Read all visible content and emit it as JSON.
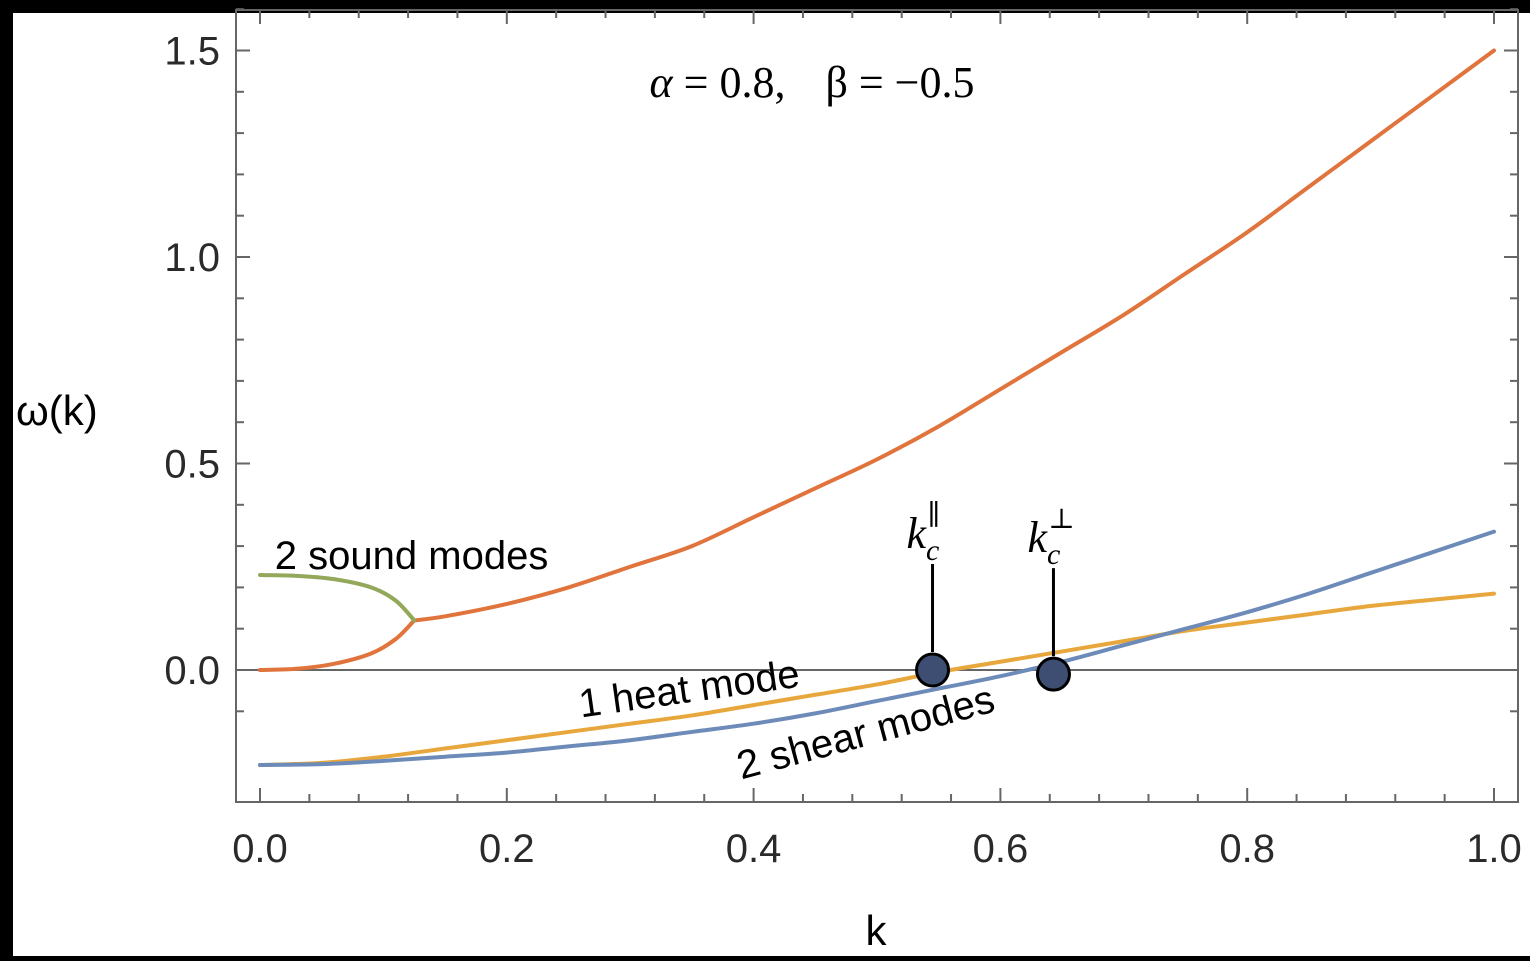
{
  "chart_data": {
    "type": "line",
    "title": "α = 0.8,    β = −0.5",
    "title_parts": {
      "alpha_symbol": "α",
      "alpha_eq": " = 0.8,",
      "beta_symbol": "β",
      "beta_eq": " = −0.5"
    },
    "xlabel": "k",
    "ylabel": "ω(k)",
    "xlim": [
      0.0,
      1.0
    ],
    "ylim": [
      -0.3,
      1.6
    ],
    "x_ticks": [
      "0.0",
      "0.2",
      "0.4",
      "0.6",
      "0.8",
      "1.0"
    ],
    "x_tick_values": [
      0.0,
      0.2,
      0.4,
      0.6,
      0.8,
      1.0
    ],
    "y_ticks": [
      "0.0",
      "0.5",
      "1.0",
      "1.5"
    ],
    "y_tick_values": [
      0.0,
      0.5,
      1.0,
      1.5
    ],
    "grid": false,
    "series": [
      {
        "color": "#e0743c",
        "x": [
          0.125,
          0.15,
          0.2,
          0.25,
          0.3,
          0.35,
          0.4,
          0.45,
          0.5,
          0.55,
          0.6,
          0.65,
          0.7,
          0.75,
          0.8,
          0.85,
          0.9,
          0.95,
          1.0
        ],
        "y": [
          0.12,
          0.13,
          0.16,
          0.2,
          0.25,
          0.3,
          0.37,
          0.44,
          0.51,
          0.59,
          0.68,
          0.77,
          0.86,
          0.96,
          1.06,
          1.17,
          1.28,
          1.39,
          1.5
        ]
      },
      {
        "color": "#e0743c",
        "x": [
          0.0,
          0.03,
          0.06,
          0.09,
          0.11,
          0.125
        ],
        "y": [
          0.0,
          0.003,
          0.015,
          0.04,
          0.075,
          0.12
        ]
      },
      {
        "color": "#93a85a",
        "x": [
          0.0,
          0.03,
          0.06,
          0.09,
          0.11,
          0.125
        ],
        "y": [
          0.23,
          0.228,
          0.22,
          0.2,
          0.168,
          0.12
        ]
      },
      {
        "color": "#e8a73c",
        "x": [
          0.0,
          0.05,
          0.1,
          0.15,
          0.2,
          0.25,
          0.3,
          0.35,
          0.4,
          0.45,
          0.5,
          0.55,
          0.6,
          0.65,
          0.7,
          0.75,
          0.8,
          0.85,
          0.9,
          0.95,
          1.0
        ],
        "y": [
          -0.23,
          -0.225,
          -0.21,
          -0.19,
          -0.17,
          -0.15,
          -0.13,
          -0.11,
          -0.085,
          -0.06,
          -0.035,
          -0.005,
          0.02,
          0.045,
          0.07,
          0.095,
          0.115,
          0.135,
          0.155,
          0.17,
          0.185
        ]
      },
      {
        "color": "#6d8bb8",
        "x": [
          0.0,
          0.05,
          0.1,
          0.15,
          0.2,
          0.25,
          0.3,
          0.35,
          0.4,
          0.45,
          0.5,
          0.55,
          0.6,
          0.65,
          0.7,
          0.75,
          0.8,
          0.85,
          0.9,
          0.95,
          1.0
        ],
        "y": [
          -0.23,
          -0.228,
          -0.22,
          -0.21,
          -0.2,
          -0.185,
          -0.17,
          -0.15,
          -0.13,
          -0.105,
          -0.075,
          -0.045,
          -0.015,
          0.02,
          0.06,
          0.1,
          0.14,
          0.185,
          0.235,
          0.285,
          0.335
        ]
      }
    ],
    "annotations": [
      {
        "text": "2 sound modes",
        "x": 0.012,
        "y": 0.245,
        "angle": 0
      },
      {
        "text": "1 heat mode",
        "x": 0.26,
        "y": -0.115,
        "angle": -8
      },
      {
        "text": "2 shear modes",
        "x": 0.39,
        "y": -0.265,
        "angle": -15
      }
    ],
    "markers": [
      {
        "label_main": "k",
        "label_sub": "c",
        "label_sup": "∥",
        "x": 0.545,
        "y": 0.0
      },
      {
        "label_main": "k",
        "label_sub": "c",
        "label_sup": "⊥",
        "x": 0.643,
        "y": -0.01
      }
    ],
    "marker_color": "#3e4e72",
    "axis_color": "#666666"
  }
}
